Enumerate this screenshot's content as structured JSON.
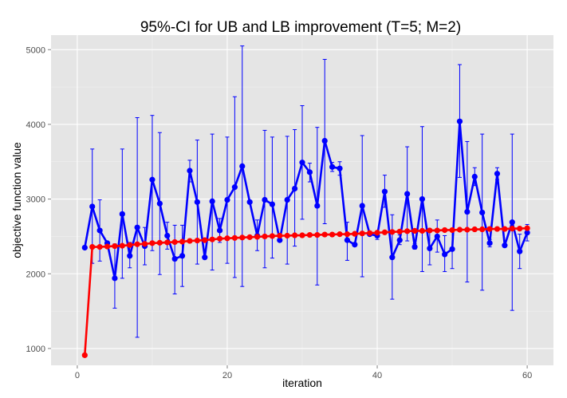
{
  "chart_data": {
    "type": "line",
    "title": "95%-CI for UB and LB improvement (T=5; M=2)",
    "xlabel": "iteration",
    "ylabel": "objective function value",
    "xlim": [
      -3.5,
      63.5
    ],
    "ylim": [
      775,
      5195
    ],
    "x_ticks": [
      0,
      20,
      40,
      60
    ],
    "y_ticks": [
      1000,
      2000,
      3000,
      4000,
      5000
    ],
    "grid": true,
    "legend": "none",
    "colors": {
      "panel": "#e5e5e5",
      "grid": "#ffffff",
      "ub": "#0000ff",
      "lb": "#ff0000"
    },
    "x": [
      1,
      2,
      3,
      4,
      5,
      6,
      7,
      8,
      9,
      10,
      11,
      12,
      13,
      14,
      15,
      16,
      17,
      18,
      19,
      20,
      21,
      22,
      23,
      24,
      25,
      26,
      27,
      28,
      29,
      30,
      31,
      32,
      33,
      34,
      35,
      36,
      37,
      38,
      39,
      40,
      41,
      42,
      43,
      44,
      45,
      46,
      47,
      48,
      49,
      50,
      51,
      52,
      53,
      54,
      55,
      56,
      57,
      58,
      59,
      60
    ],
    "series": [
      {
        "key": "ub",
        "color": "#0000ff",
        "values": [
          2350,
          2900,
          2580,
          2410,
          1940,
          2800,
          2240,
          2620,
          2370,
          3260,
          2940,
          2510,
          2200,
          2240,
          3380,
          2960,
          2220,
          2970,
          2580,
          2990,
          3160,
          3440,
          2960,
          2510,
          2990,
          2930,
          2450,
          2990,
          3140,
          3490,
          3360,
          2910,
          3780,
          3430,
          3410,
          2450,
          2390,
          2910,
          2530,
          2510,
          3100,
          2220,
          2450,
          3070,
          2360,
          3000,
          2340,
          2500,
          2260,
          2330,
          4040,
          2830,
          3300,
          2820,
          2410,
          3340,
          2380,
          2690,
          2300,
          2550
        ],
        "ci_low": [
          null,
          2140,
          2170,
          2270,
          1540,
          1940,
          2080,
          1150,
          2120,
          2310,
          1990,
          2330,
          1730,
          1830,
          3230,
          2130,
          null,
          2050,
          2420,
          2140,
          1950,
          1830,
          null,
          2310,
          2080,
          2210,
          null,
          2130,
          2370,
          2730,
          3230,
          1850,
          2670,
          3370,
          3320,
          2180,
          null,
          1960,
          null,
          2460,
          2890,
          1660,
          2390,
          2440,
          2330,
          2030,
          2120,
          2290,
          2030,
          2070,
          3290,
          1890,
          3180,
          1780,
          2360,
          3260,
          null,
          1510,
          2070,
          2440
        ],
        "ci_high": [
          null,
          3670,
          2990,
          null,
          2400,
          3670,
          2420,
          4090,
          2620,
          4120,
          3890,
          2690,
          2650,
          2650,
          3520,
          3790,
          null,
          3870,
          2740,
          3830,
          4370,
          5050,
          null,
          2720,
          3920,
          3830,
          null,
          3840,
          3930,
          4250,
          3480,
          3960,
          4870,
          3490,
          3500,
          2690,
          null,
          3850,
          null,
          2560,
          3320,
          2790,
          2520,
          3700,
          2400,
          3970,
          2560,
          2720,
          2510,
          2600,
          4800,
          3770,
          3420,
          3870,
          2460,
          3420,
          null,
          3870,
          2530,
          2660
        ]
      },
      {
        "key": "lb",
        "color": "#ff0000",
        "values": [
          910,
          2360,
          2360,
          2365,
          2370,
          2375,
          2385,
          2395,
          2400,
          2410,
          2415,
          2420,
          2425,
          2430,
          2440,
          2445,
          2450,
          2460,
          2470,
          2475,
          2480,
          2485,
          2490,
          2495,
          2500,
          2505,
          2510,
          2510,
          2515,
          2515,
          2520,
          2520,
          2525,
          2525,
          2530,
          2530,
          2535,
          2540,
          2545,
          2550,
          2555,
          2560,
          2565,
          2570,
          2575,
          2575,
          2580,
          2580,
          2585,
          2585,
          2590,
          2590,
          2595,
          2595,
          2600,
          2600,
          2600,
          2605,
          2605,
          2610
        ]
      }
    ]
  }
}
